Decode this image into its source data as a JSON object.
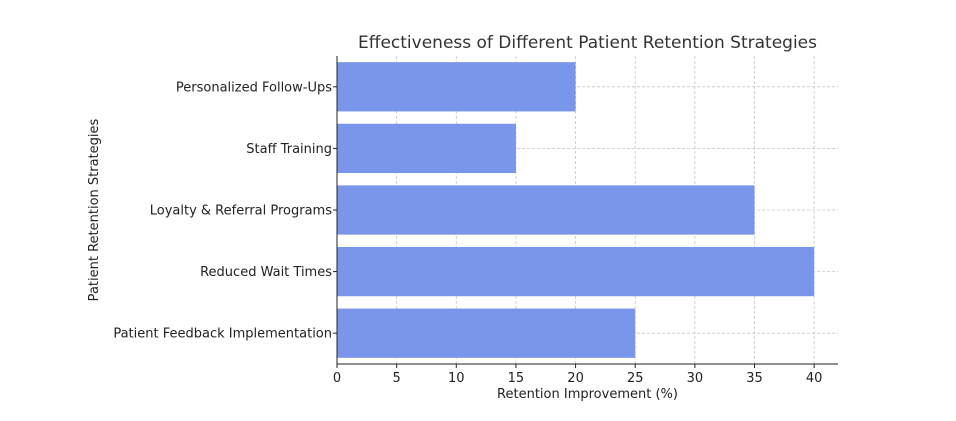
{
  "chart_data": {
    "type": "bar",
    "orientation": "horizontal",
    "title": "Effectiveness of Different Patient Retention Strategies",
    "xlabel": "Retention Improvement (%)",
    "ylabel": "Patient Retention Strategies",
    "categories": [
      "Patient Feedback Implementation",
      "Reduced Wait Times",
      "Loyalty & Referral Programs",
      "Staff Training",
      "Personalized Follow-Ups"
    ],
    "values": [
      25,
      40,
      35,
      15,
      20
    ],
    "xlim": [
      0,
      42
    ],
    "xticks": [
      0,
      5,
      10,
      15,
      20,
      25,
      30,
      35,
      40
    ],
    "grid": true,
    "bar_color": "#7a96ea"
  }
}
